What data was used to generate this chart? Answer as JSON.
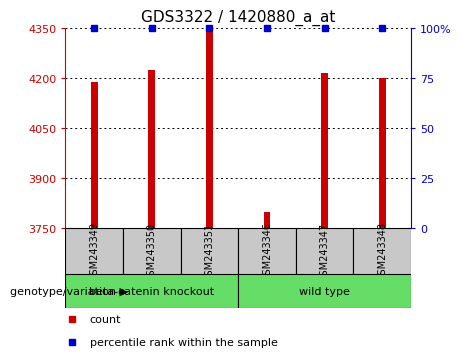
{
  "title": "GDS3322 / 1420880_a_at",
  "samples": [
    "GSM243349",
    "GSM243350",
    "GSM243351",
    "GSM243346",
    "GSM243347",
    "GSM243348"
  ],
  "counts": [
    4190,
    4225,
    4340,
    3800,
    4215,
    4200
  ],
  "percentiles": [
    100,
    100,
    100,
    100,
    100,
    100
  ],
  "percentile_marker_size": 5,
  "groups": [
    {
      "label": "beta-catenin knockout",
      "indices": [
        0,
        1,
        2
      ],
      "color": "#66DD66"
    },
    {
      "label": "wild type",
      "indices": [
        3,
        4,
        5
      ],
      "color": "#66DD66"
    }
  ],
  "bar_color": "#CC0000",
  "percentile_color": "#0000CC",
  "bar_width": 0.12,
  "ylim_left": [
    3750,
    4350
  ],
  "ylim_right": [
    0,
    100
  ],
  "yticks_left": [
    3750,
    3900,
    4050,
    4200,
    4350
  ],
  "yticks_right": [
    0,
    25,
    50,
    75,
    100
  ],
  "ytick_labels_right": [
    "0",
    "25",
    "50",
    "75",
    "100%"
  ],
  "grid_color": "#000000",
  "bg_color": "#ffffff",
  "tick_label_color_left": "#CC0000",
  "tick_label_color_right": "#0000CC",
  "sample_bg_color": "#C8C8C8",
  "title_fontsize": 11,
  "tick_fontsize": 8,
  "label_fontsize": 8,
  "legend_fontsize": 8,
  "group_fontsize": 8,
  "sample_label_fontsize": 7
}
